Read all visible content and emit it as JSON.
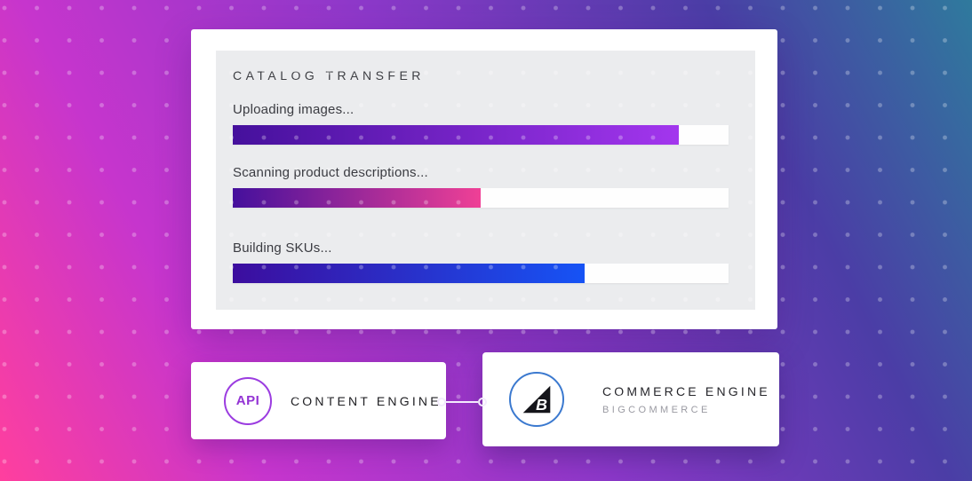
{
  "background": {
    "gradient_stops": [
      "#ff3f9e",
      "#c635cd",
      "#8c38c9",
      "#4b3da6",
      "#2f7a9d"
    ],
    "dot_color": "rgba(255,255,255,0.28)"
  },
  "transfer_panel": {
    "title": "CATALOG TRANSFER",
    "tasks": [
      {
        "label": "Uploading images...",
        "progress_percent": 90,
        "gradient_from": "#45109c",
        "gradient_to": "#a336ee"
      },
      {
        "label": "Scanning product descriptions...",
        "progress_percent": 50,
        "gradient_from": "#45109c",
        "gradient_to": "#ef4096"
      },
      {
        "label": "Building SKUs...",
        "progress_percent": 71,
        "gradient_from": "#3c0d9e",
        "gradient_to": "#1653f5"
      }
    ]
  },
  "content_node": {
    "badge_label": "API",
    "label": "CONTENT ENGINE",
    "accent_color": "#9b3ce0"
  },
  "commerce_node": {
    "label": "COMMERCE ENGINE",
    "sublabel": "BIGCOMMERCE",
    "accent_color": "#3b79cf",
    "logo_letter": "B"
  }
}
